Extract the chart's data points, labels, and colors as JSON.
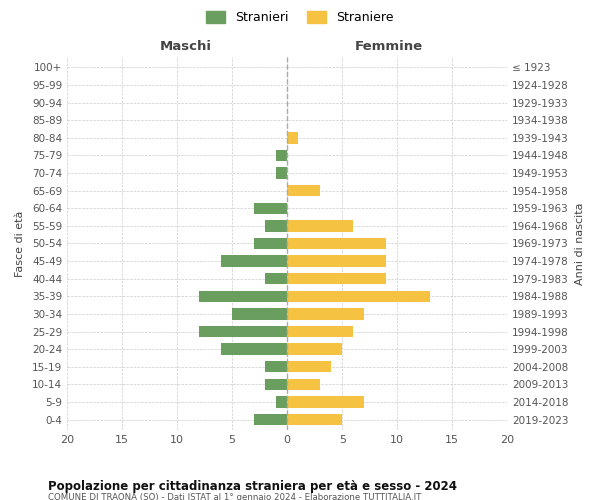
{
  "age_groups": [
    "100+",
    "95-99",
    "90-94",
    "85-89",
    "80-84",
    "75-79",
    "70-74",
    "65-69",
    "60-64",
    "55-59",
    "50-54",
    "45-49",
    "40-44",
    "35-39",
    "30-34",
    "25-29",
    "20-24",
    "15-19",
    "10-14",
    "5-9",
    "0-4"
  ],
  "birth_years": [
    "≤ 1923",
    "1924-1928",
    "1929-1933",
    "1934-1938",
    "1939-1943",
    "1944-1948",
    "1949-1953",
    "1954-1958",
    "1959-1963",
    "1964-1968",
    "1969-1973",
    "1974-1978",
    "1979-1983",
    "1984-1988",
    "1989-1993",
    "1994-1998",
    "1999-2003",
    "2004-2008",
    "2009-2013",
    "2014-2018",
    "2019-2023"
  ],
  "maschi": [
    0,
    0,
    0,
    0,
    0,
    1,
    1,
    0,
    3,
    2,
    3,
    6,
    2,
    8,
    5,
    8,
    6,
    2,
    2,
    1,
    3
  ],
  "femmine": [
    0,
    0,
    0,
    0,
    1,
    0,
    0,
    3,
    0,
    6,
    9,
    9,
    9,
    13,
    7,
    6,
    5,
    4,
    3,
    7,
    5
  ],
  "male_color": "#6a9e5e",
  "female_color": "#f5c242",
  "title": "Popolazione per cittadinanza straniera per età e sesso - 2024",
  "subtitle": "COMUNE DI TRAONA (SO) - Dati ISTAT al 1° gennaio 2024 - Elaborazione TUTTITALIA.IT",
  "ylabel_left": "Fasce di età",
  "ylabel_right": "Anni di nascita",
  "xlabel_left": "Maschi",
  "xlabel_right": "Femmine",
  "legend_male": "Stranieri",
  "legend_female": "Straniere",
  "xlim": 20,
  "background_color": "#ffffff",
  "grid_color": "#cccccc"
}
